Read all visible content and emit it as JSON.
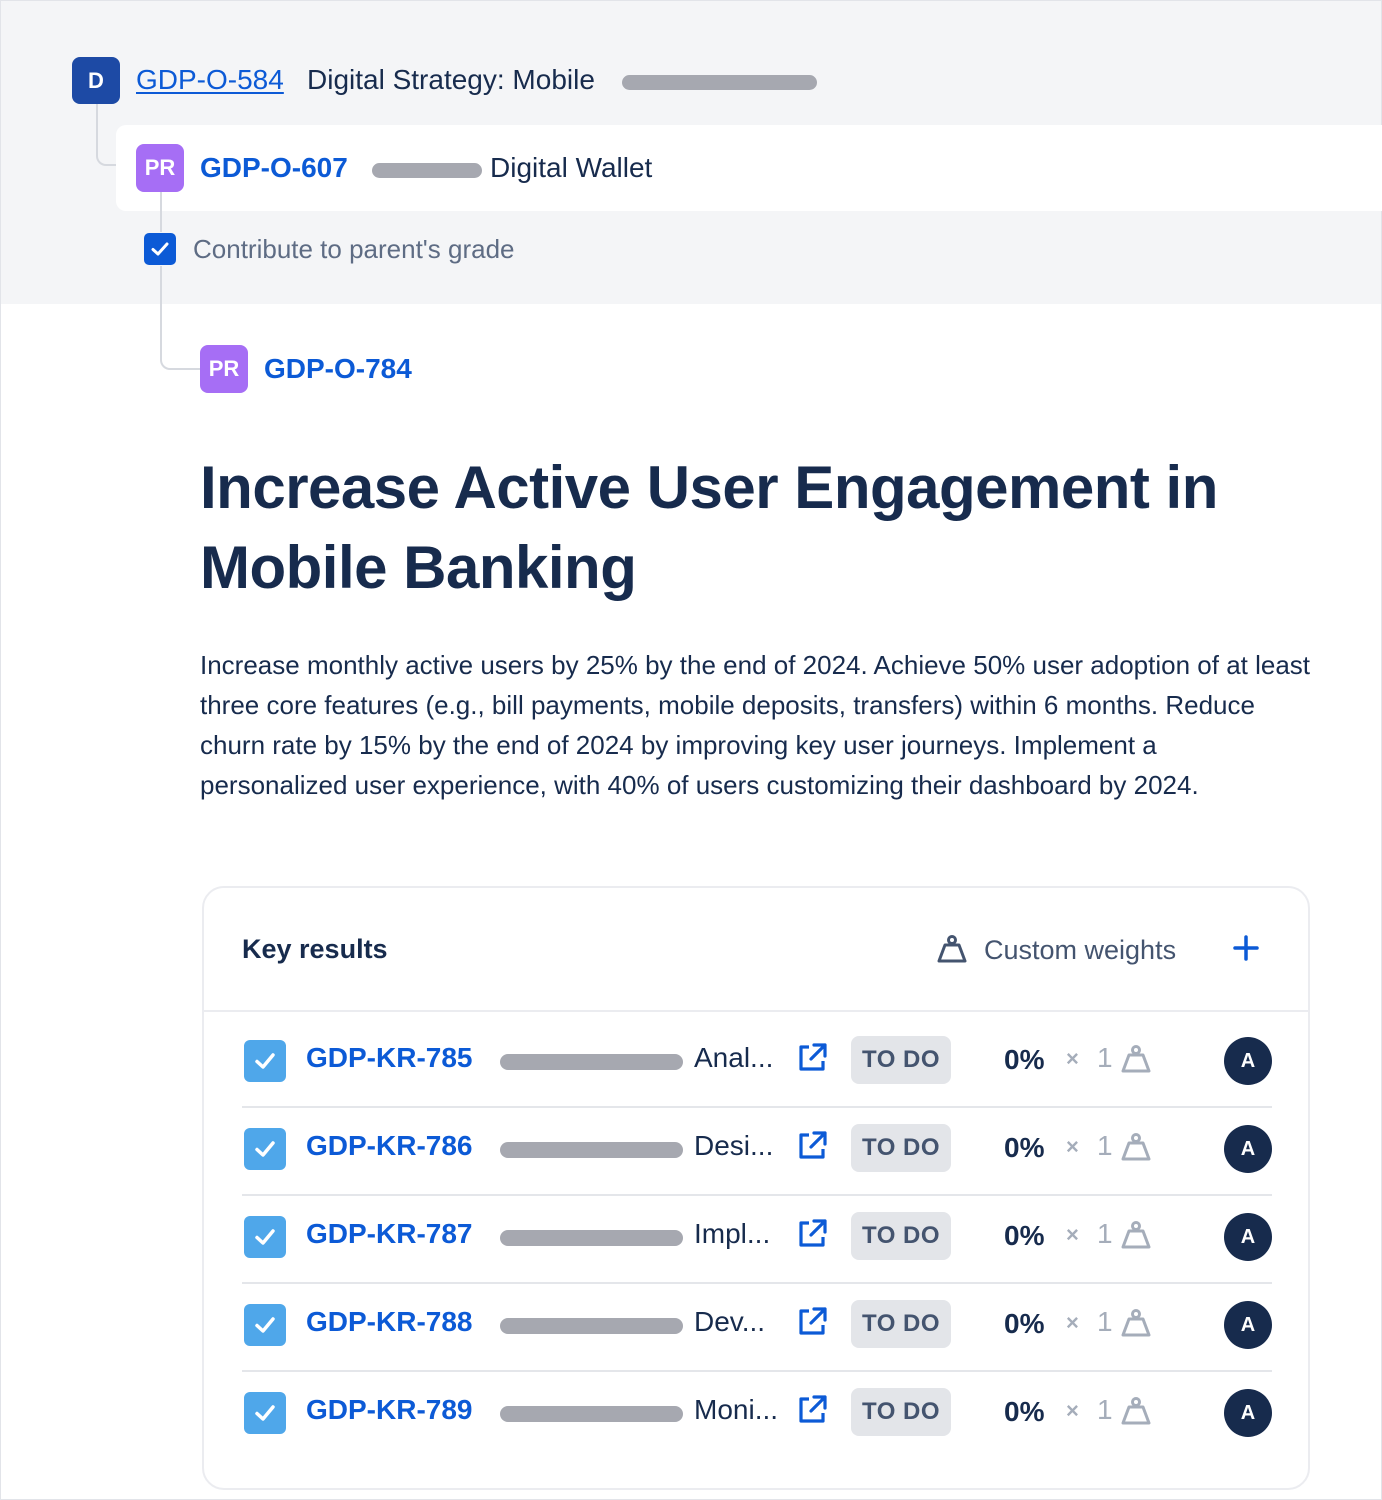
{
  "hierarchy": {
    "root": {
      "badge": "D",
      "key": "GDP-O-584",
      "title": "Digital Strategy: Mobile"
    },
    "parent": {
      "badge": "PR",
      "key": "GDP-O-607",
      "title": "Digital Wallet"
    },
    "contribute_label": "Contribute to parent's grade",
    "contribute_checked": true,
    "current": {
      "badge": "PR",
      "key": "GDP-O-784"
    }
  },
  "objective": {
    "title": "Increase Active User Engagement in Mobile Banking",
    "description": "Increase monthly active users by 25% by the end of 2024. Achieve 50% user adoption of at least three core features (e.g., bill payments, mobile deposits, transfers) within 6 months. Reduce churn rate by 15% by the end of 2024 by improving key user journeys. Implement a personalized user experience, with 40% of users customizing their dashboard by 2024."
  },
  "key_results": {
    "title": "Key results",
    "custom_weights_label": "Custom weights",
    "add_icon": "plus-icon",
    "items": [
      {
        "key": "GDP-KR-785",
        "summary": "Anal...",
        "status": "TO DO",
        "progress": "0%",
        "times": "×",
        "weight": "1",
        "assignee": "A",
        "checked": true
      },
      {
        "key": "GDP-KR-786",
        "summary": "Desi...",
        "status": "TO DO",
        "progress": "0%",
        "times": "×",
        "weight": "1",
        "assignee": "A",
        "checked": true
      },
      {
        "key": "GDP-KR-787",
        "summary": "Impl...",
        "status": "TO DO",
        "progress": "0%",
        "times": "×",
        "weight": "1",
        "assignee": "A",
        "checked": true
      },
      {
        "key": "GDP-KR-788",
        "summary": "Dev...",
        "status": "TO DO",
        "progress": "0%",
        "times": "×",
        "weight": "1",
        "assignee": "A",
        "checked": true
      },
      {
        "key": "GDP-KR-789",
        "summary": "Moni...",
        "status": "TO DO",
        "progress": "0%",
        "times": "×",
        "weight": "1",
        "assignee": "A",
        "checked": true
      }
    ]
  },
  "colors": {
    "link": "#0c5ad6",
    "root_badge": "#1d4aa5",
    "pr_badge": "#a66ef5",
    "checkbox_dark": "#0c5ad6",
    "checkbox_light": "#4fa7ea",
    "avatar": "#172b4d",
    "status_bg": "#e3e5e9"
  }
}
